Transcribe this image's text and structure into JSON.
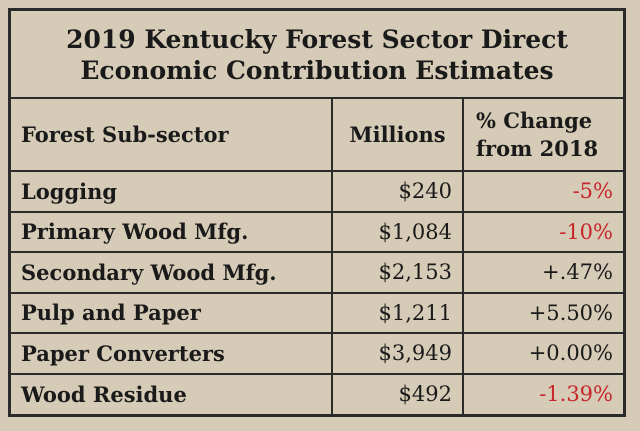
{
  "chart_data": {
    "type": "table",
    "title_line1": "2019 Kentucky Forest Sector Direct",
    "title_line2": "Economic Contribution Estimates",
    "columns": [
      "Forest Sub-sector",
      "Millions",
      "% Change",
      "from 2018"
    ],
    "rows": [
      {
        "name": "Logging",
        "millions": "$240",
        "change": "-5%",
        "change_color": "#c8262a"
      },
      {
        "name": "Primary Wood Mfg.",
        "millions": "$1,084",
        "change": "-10%",
        "change_color": "#c8262a"
      },
      {
        "name": "Secondary Wood Mfg.",
        "millions": "$2,153",
        "change": "+.47%",
        "change_color": "#1a1a1a"
      },
      {
        "name": "Pulp and Paper",
        "millions": "$1,211",
        "change": "+5.50%",
        "change_color": "#1a1a1a"
      },
      {
        "name": "Paper Converters",
        "millions": "$3,949",
        "change": "+0.00%",
        "change_color": "#1a1a1a"
      },
      {
        "name": "Wood Residue",
        "millions": "$492",
        "change": "-1.39%",
        "change_color": "#c8262a"
      }
    ]
  }
}
